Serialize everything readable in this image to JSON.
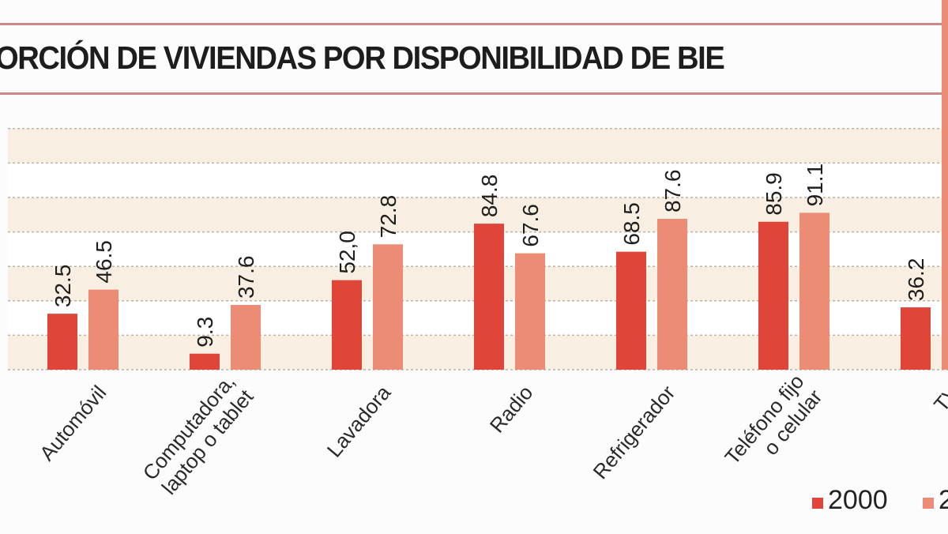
{
  "title": "ORCIÓN DE VIVIENDAS POR DISPONIBILIDAD DE BIE",
  "chart_data": {
    "type": "bar",
    "title": "ORCIÓN DE VIVIENDAS POR DISPONIBILIDAD DE BIE",
    "categories": [
      "Automóvil",
      "Computadora,\nlaptop o tablet",
      "Lavadora",
      "Radio",
      "Refrigerador",
      "Teléfono fijo\no celular",
      "TV"
    ],
    "series": [
      {
        "name": "2000",
        "color": "#e0453a",
        "values": [
          32.5,
          9.3,
          52.0,
          84.8,
          68.5,
          85.9,
          36.2
        ],
        "labels": [
          "32.5",
          "9.3",
          "52,0",
          "84.8",
          "68.5",
          "85.9",
          "36.2"
        ]
      },
      {
        "name": "2",
        "color": "#ec8c74",
        "values": [
          46.5,
          37.6,
          72.8,
          67.6,
          87.6,
          91.1,
          null
        ],
        "labels": [
          "46.5",
          "37.6",
          "72.8",
          "67.6",
          "87.6",
          "91.1",
          ""
        ]
      }
    ],
    "ylim": [
      0,
      140
    ],
    "grid": true,
    "grid_step": 20,
    "band_colors": [
      "#f8efe2",
      "#ffffff"
    ],
    "legend_position": "bottom-right"
  }
}
